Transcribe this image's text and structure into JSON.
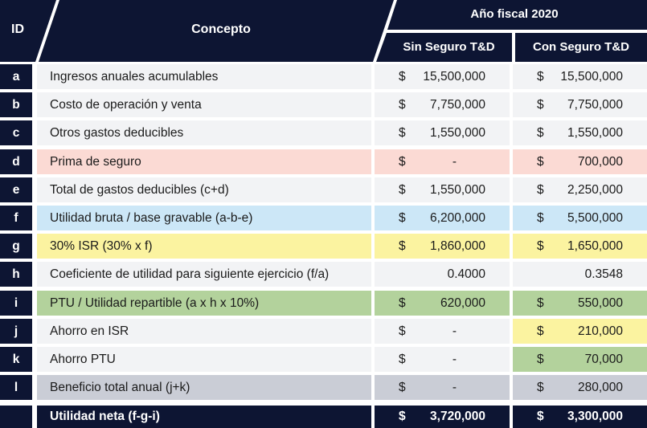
{
  "header": {
    "id_label": "ID",
    "concept_label": "Concepto",
    "year_label": "Año fiscal 2020",
    "col1_label": "Sin Seguro T&D",
    "col2_label": "Con Seguro T&D"
  },
  "colors": {
    "navy": "#0d1533",
    "row_default": "#f2f3f5",
    "pink": "#fbdad4",
    "blue": "#cce7f7",
    "yellow": "#fbf3a0",
    "green": "#b3d29c",
    "gray": "#cacdd6"
  },
  "rows": [
    {
      "id": "a",
      "concept": "Ingresos anuales acumulables",
      "c1_sym": "$",
      "c1_val": "15,500,000",
      "c2_sym": "$",
      "c2_val": "15,500,000",
      "bg_concept": "#f2f3f5",
      "bg_c1": "#f2f3f5",
      "bg_c2": "#f2f3f5"
    },
    {
      "id": "b",
      "concept": "Costo de operación y venta",
      "c1_sym": "$",
      "c1_val": "7,750,000",
      "c2_sym": "$",
      "c2_val": "7,750,000",
      "bg_concept": "#f2f3f5",
      "bg_c1": "#f2f3f5",
      "bg_c2": "#f2f3f5"
    },
    {
      "id": "c",
      "concept": "Otros gastos deducibles",
      "c1_sym": "$",
      "c1_val": "1,550,000",
      "c2_sym": "$",
      "c2_val": "1,550,000",
      "bg_concept": "#f2f3f5",
      "bg_c1": "#f2f3f5",
      "bg_c2": "#f2f3f5"
    },
    {
      "id": "d",
      "concept": "Prima de seguro",
      "c1_sym": "$",
      "c1_val": "-",
      "c1_center": true,
      "c2_sym": "$",
      "c2_val": "700,000",
      "bg_concept": "#fbdad4",
      "bg_c1": "#fbdad4",
      "bg_c2": "#fbdad4"
    },
    {
      "id": "e",
      "concept": "Total de gastos deducibles (c+d)",
      "c1_sym": "$",
      "c1_val": "1,550,000",
      "c2_sym": "$",
      "c2_val": "2,250,000",
      "bg_concept": "#f2f3f5",
      "bg_c1": "#f2f3f5",
      "bg_c2": "#f2f3f5"
    },
    {
      "id": "f",
      "concept": "Utilidad bruta / base gravable (a-b-e)",
      "c1_sym": "$",
      "c1_val": "6,200,000",
      "c2_sym": "$",
      "c2_val": "5,500,000",
      "bg_concept": "#cce7f7",
      "bg_c1": "#cce7f7",
      "bg_c2": "#cce7f7"
    },
    {
      "id": "g",
      "concept": "30% ISR (30% x f)",
      "c1_sym": "$",
      "c1_val": "1,860,000",
      "c2_sym": "$",
      "c2_val": "1,650,000",
      "bg_concept": "#fbf3a0",
      "bg_c1": "#fbf3a0",
      "bg_c2": "#fbf3a0"
    },
    {
      "id": "h",
      "concept": "Coeficiente de utilidad para siguiente ejercicio (f/a)",
      "c1_sym": "",
      "c1_val": "0.4000",
      "c2_sym": "",
      "c2_val": "0.3548",
      "bg_concept": "#f2f3f5",
      "bg_c1": "#f2f3f5",
      "bg_c2": "#f2f3f5"
    },
    {
      "id": "i",
      "concept": "PTU / Utilidad repartible (a x h x 10%)",
      "c1_sym": "$",
      "c1_val": "620,000",
      "c2_sym": "$",
      "c2_val": "550,000",
      "bg_concept": "#b3d29c",
      "bg_c1": "#b3d29c",
      "bg_c2": "#b3d29c"
    },
    {
      "id": "j",
      "concept": "Ahorro en ISR",
      "c1_sym": "$",
      "c1_val": "-",
      "c1_center": true,
      "c2_sym": "$",
      "c2_val": "210,000",
      "bg_concept": "#f2f3f5",
      "bg_c1": "#f2f3f5",
      "bg_c2": "#fbf3a0"
    },
    {
      "id": "k",
      "concept": "Ahorro PTU",
      "c1_sym": "$",
      "c1_val": "-",
      "c1_center": true,
      "c2_sym": "$",
      "c2_val": "70,000",
      "bg_concept": "#f2f3f5",
      "bg_c1": "#f2f3f5",
      "bg_c2": "#b3d29c"
    },
    {
      "id": "l",
      "concept": "Beneficio total anual (j+k)",
      "c1_sym": "$",
      "c1_val": "-",
      "c1_center": true,
      "c2_sym": "$",
      "c2_val": "280,000",
      "bg_concept": "#cacdd6",
      "bg_c1": "#cacdd6",
      "bg_c2": "#cacdd6"
    }
  ],
  "footer": {
    "concept": "Utilidad neta (f-g-i)",
    "c1_sym": "$",
    "c1_val": "3,720,000",
    "c2_sym": "$",
    "c2_val": "3,300,000"
  }
}
